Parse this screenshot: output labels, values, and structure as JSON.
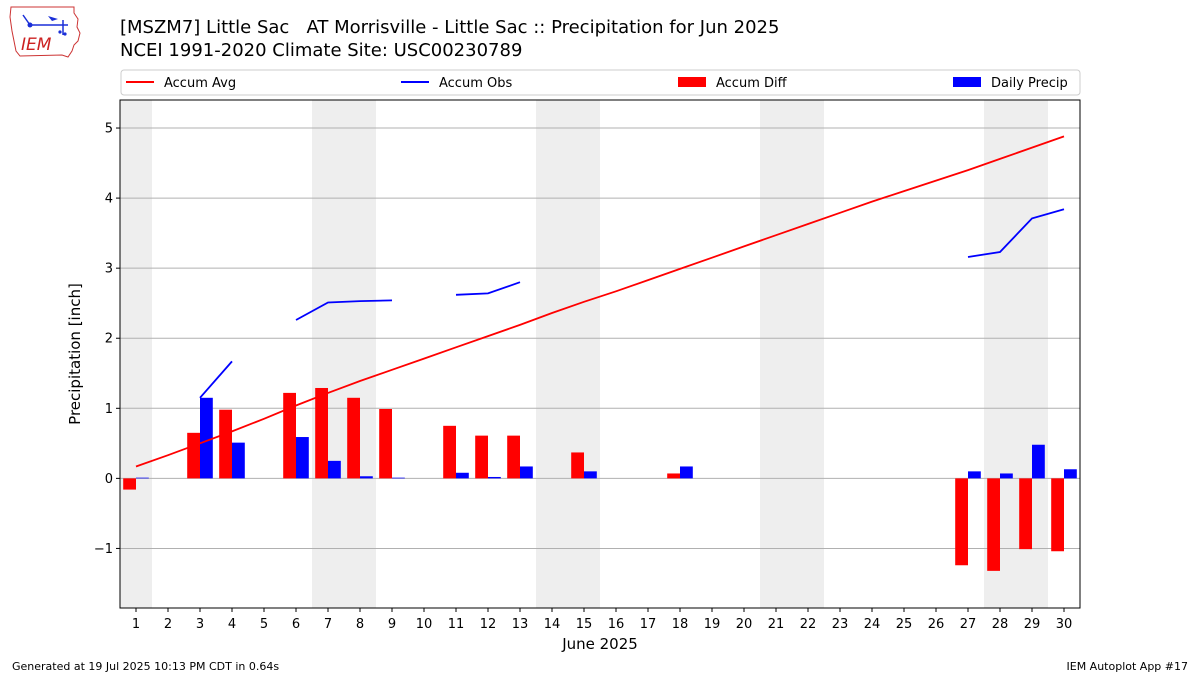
{
  "header": {
    "title_line1": "[MSZM7] Little Sac   AT Morrisville - Little Sac :: Precipitation for Jun 2025",
    "title_line2": "NCEI 1991-2020 Climate Site: USC00230789",
    "logo_text": "IEM"
  },
  "footer": {
    "generated": "Generated at 19 Jul 2025 10:13 PM CDT in 0.64s",
    "app": "IEM Autoplot App #17"
  },
  "colors": {
    "avg": "#ff0000",
    "obs": "#0000ff",
    "diff": "#ff0000",
    "daily": "#0000ff",
    "weekend_shade": "#eeeeee",
    "grid": "#b0b0b0"
  },
  "chart_data": {
    "type": "bar",
    "xlabel": "June 2025",
    "ylabel": "Precipitation [inch]",
    "ylim": [
      -1.85,
      5.4
    ],
    "yticks": [
      -1,
      0,
      1,
      2,
      3,
      4,
      5
    ],
    "ytick_labels": [
      "−1",
      "0",
      "1",
      "2",
      "3",
      "4",
      "5"
    ],
    "x": [
      1,
      2,
      3,
      4,
      5,
      6,
      7,
      8,
      9,
      10,
      11,
      12,
      13,
      14,
      15,
      16,
      17,
      18,
      19,
      20,
      21,
      22,
      23,
      24,
      25,
      26,
      27,
      28,
      29,
      30
    ],
    "grid": true,
    "legend_position": "top",
    "weekend_spans": [
      [
        0.5,
        1.5
      ],
      [
        6.5,
        8.5
      ],
      [
        13.5,
        15.5
      ],
      [
        20.5,
        22.5
      ],
      [
        27.5,
        29.5
      ]
    ],
    "series": [
      {
        "name": "Accum Avg",
        "kind": "line",
        "values": [
          0.17,
          0.33,
          0.5,
          0.67,
          0.85,
          1.04,
          1.22,
          1.39,
          1.55,
          1.71,
          1.87,
          2.03,
          2.19,
          2.36,
          2.52,
          2.67,
          2.83,
          2.99,
          3.15,
          3.31,
          3.47,
          3.63,
          3.79,
          3.95,
          4.1,
          4.25,
          4.4,
          4.56,
          4.72,
          4.88
        ]
      },
      {
        "name": "Accum Obs",
        "kind": "line",
        "values": [
          null,
          null,
          1.15,
          1.67,
          null,
          2.26,
          2.51,
          2.53,
          2.54,
          null,
          2.62,
          2.64,
          2.8,
          null,
          null,
          null,
          null,
          null,
          null,
          null,
          null,
          null,
          null,
          null,
          null,
          null,
          3.16,
          3.23,
          3.71,
          3.84
        ]
      },
      {
        "name": "Accum Diff",
        "kind": "bar",
        "values": [
          -0.16,
          null,
          0.65,
          0.98,
          null,
          1.22,
          1.29,
          1.15,
          0.99,
          null,
          0.75,
          0.61,
          0.61,
          null,
          0.37,
          null,
          null,
          0.07,
          null,
          null,
          null,
          null,
          null,
          null,
          null,
          null,
          -1.24,
          -1.32,
          -1.01,
          -1.04
        ]
      },
      {
        "name": "Daily Precip",
        "kind": "bar",
        "values": [
          0.01,
          null,
          1.15,
          0.51,
          null,
          0.59,
          0.25,
          0.03,
          0.01,
          null,
          0.08,
          0.02,
          0.17,
          null,
          0.1,
          null,
          null,
          0.17,
          null,
          null,
          null,
          null,
          null,
          null,
          null,
          null,
          0.1,
          0.07,
          0.48,
          0.13
        ]
      }
    ]
  }
}
